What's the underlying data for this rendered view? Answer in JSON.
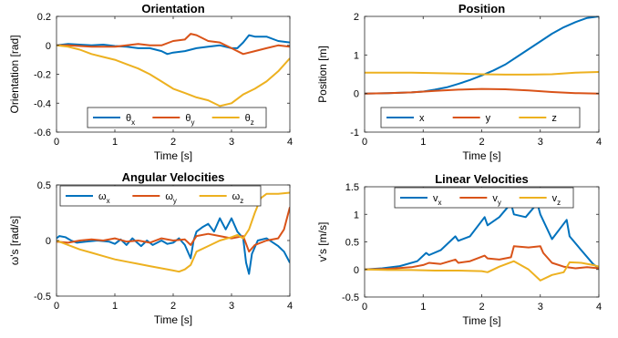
{
  "chart_data": [
    {
      "type": "line",
      "title": "Orientation",
      "xlabel": "Time [s]",
      "ylabel": "Orientation [rad]",
      "xlim": [
        0,
        4
      ],
      "ylim": [
        -0.6,
        0.2
      ],
      "xticks": [
        "0",
        "1",
        "2",
        "3",
        "4"
      ],
      "yticks": [
        "-0.6",
        "-0.4",
        "-0.2",
        "0",
        "0.2"
      ],
      "grid": false,
      "legend_position": "bottom-center",
      "legend_orientation": "horizontal",
      "series": [
        {
          "name": "θx",
          "name_base": "θ",
          "name_sub": "x",
          "color": "#0072BD",
          "x": [
            0,
            0.2,
            0.4,
            0.6,
            0.8,
            1.0,
            1.2,
            1.4,
            1.6,
            1.8,
            1.9,
            2.0,
            2.2,
            2.4,
            2.6,
            2.8,
            3.0,
            3.1,
            3.2,
            3.3,
            3.4,
            3.6,
            3.8,
            4.0
          ],
          "y": [
            0.0,
            0.01,
            0.005,
            0.0,
            0.005,
            -0.005,
            -0.01,
            -0.02,
            -0.02,
            -0.04,
            -0.06,
            -0.05,
            -0.04,
            -0.02,
            -0.01,
            0.0,
            -0.02,
            -0.02,
            0.02,
            0.07,
            0.06,
            0.06,
            0.03,
            0.02
          ]
        },
        {
          "name": "θy",
          "name_base": "θ",
          "name_sub": "y",
          "color": "#D95319",
          "x": [
            0,
            0.2,
            0.4,
            0.6,
            0.8,
            1.0,
            1.2,
            1.4,
            1.6,
            1.8,
            2.0,
            2.2,
            2.3,
            2.4,
            2.6,
            2.8,
            3.0,
            3.2,
            3.4,
            3.6,
            3.8,
            4.0
          ],
          "y": [
            0.0,
            0.0,
            -0.005,
            -0.01,
            -0.01,
            -0.01,
            0.0,
            0.01,
            0.0,
            0.0,
            0.03,
            0.04,
            0.08,
            0.07,
            0.03,
            0.02,
            -0.02,
            -0.06,
            -0.04,
            -0.02,
            0.0,
            -0.01
          ]
        },
        {
          "name": "θz",
          "name_base": "θ",
          "name_sub": "z",
          "color": "#EDB120",
          "x": [
            0,
            0.2,
            0.4,
            0.6,
            0.8,
            1.0,
            1.2,
            1.4,
            1.6,
            1.8,
            2.0,
            2.2,
            2.4,
            2.6,
            2.8,
            3.0,
            3.2,
            3.4,
            3.6,
            3.8,
            4.0
          ],
          "y": [
            0.0,
            -0.01,
            -0.03,
            -0.06,
            -0.08,
            -0.1,
            -0.13,
            -0.16,
            -0.2,
            -0.25,
            -0.3,
            -0.33,
            -0.36,
            -0.38,
            -0.42,
            -0.4,
            -0.34,
            -0.3,
            -0.25,
            -0.18,
            -0.09
          ]
        }
      ]
    },
    {
      "type": "line",
      "title": "Position",
      "xlabel": "Time [s]",
      "ylabel": "Position [m]",
      "xlim": [
        0,
        4
      ],
      "ylim": [
        -1,
        2
      ],
      "xticks": [
        "0",
        "1",
        "2",
        "3",
        "4"
      ],
      "yticks": [
        "-1",
        "0",
        "1",
        "2"
      ],
      "grid": false,
      "legend_position": "bottom-center",
      "legend_orientation": "horizontal",
      "series": [
        {
          "name": "x",
          "name_base": "x",
          "name_sub": "",
          "color": "#0072BD",
          "x": [
            0,
            0.4,
            0.8,
            1.0,
            1.2,
            1.4,
            1.6,
            1.8,
            2.0,
            2.2,
            2.4,
            2.6,
            2.8,
            3.0,
            3.2,
            3.4,
            3.6,
            3.8,
            4.0
          ],
          "y": [
            0.0,
            0.01,
            0.03,
            0.05,
            0.1,
            0.16,
            0.25,
            0.35,
            0.47,
            0.6,
            0.75,
            0.95,
            1.15,
            1.35,
            1.55,
            1.72,
            1.85,
            1.96,
            2.0
          ]
        },
        {
          "name": "y",
          "name_base": "y",
          "name_sub": "",
          "color": "#D95319",
          "x": [
            0,
            0.4,
            0.8,
            1.2,
            1.6,
            2.0,
            2.4,
            2.8,
            3.2,
            3.6,
            4.0
          ],
          "y": [
            0.0,
            0.01,
            0.03,
            0.07,
            0.1,
            0.12,
            0.11,
            0.08,
            0.04,
            0.01,
            0.0
          ]
        },
        {
          "name": "z",
          "name_base": "z",
          "name_sub": "",
          "color": "#EDB120",
          "x": [
            0,
            0.4,
            0.8,
            1.2,
            1.6,
            2.0,
            2.4,
            2.8,
            3.2,
            3.6,
            4.0
          ],
          "y": [
            0.54,
            0.54,
            0.54,
            0.53,
            0.52,
            0.5,
            0.49,
            0.49,
            0.5,
            0.54,
            0.56
          ]
        }
      ]
    },
    {
      "type": "line",
      "title": "Angular Velocities",
      "xlabel": "Time [s]",
      "ylabel": "ω's [rad/s]",
      "xlim": [
        0,
        4
      ],
      "ylim": [
        -0.5,
        0.5
      ],
      "xticks": [
        "0",
        "1",
        "2",
        "3",
        "4"
      ],
      "yticks": [
        "-0.5",
        "0",
        "0.5"
      ],
      "grid": false,
      "legend_position": "top-center",
      "legend_orientation": "horizontal",
      "series": [
        {
          "name": "ωx",
          "name_base": "ω",
          "name_sub": "x",
          "color": "#0072BD",
          "x": [
            0,
            0.05,
            0.15,
            0.25,
            0.35,
            0.5,
            0.7,
            0.9,
            1.0,
            1.1,
            1.2,
            1.3,
            1.45,
            1.55,
            1.65,
            1.8,
            1.9,
            2.0,
            2.1,
            2.2,
            2.3,
            2.35,
            2.4,
            2.5,
            2.6,
            2.7,
            2.8,
            2.9,
            3.0,
            3.1,
            3.2,
            3.25,
            3.3,
            3.35,
            3.45,
            3.6,
            3.8,
            3.9,
            4.0
          ],
          "y": [
            0.02,
            0.04,
            0.03,
            0.0,
            -0.02,
            -0.01,
            0.0,
            -0.01,
            -0.03,
            0.01,
            -0.04,
            0.02,
            -0.05,
            0.0,
            -0.04,
            0.0,
            -0.03,
            -0.02,
            0.02,
            -0.04,
            -0.16,
            0.0,
            0.08,
            0.12,
            0.15,
            0.08,
            0.2,
            0.1,
            0.2,
            0.08,
            0.02,
            -0.2,
            -0.3,
            -0.12,
            0.0,
            0.02,
            -0.05,
            -0.1,
            -0.2
          ]
        },
        {
          "name": "ωy",
          "name_base": "ω",
          "name_sub": "y",
          "color": "#D95319",
          "x": [
            0,
            0.2,
            0.4,
            0.6,
            0.8,
            1.0,
            1.2,
            1.4,
            1.6,
            1.8,
            2.0,
            2.2,
            2.3,
            2.4,
            2.6,
            2.8,
            3.0,
            3.2,
            3.3,
            3.4,
            3.6,
            3.8,
            3.9,
            4.0
          ],
          "y": [
            -0.01,
            -0.02,
            0.0,
            0.01,
            0.0,
            0.02,
            -0.01,
            0.0,
            -0.02,
            0.02,
            0.0,
            0.01,
            -0.04,
            0.04,
            0.06,
            0.04,
            0.02,
            0.04,
            -0.1,
            -0.04,
            0.0,
            0.02,
            0.1,
            0.3
          ]
        },
        {
          "name": "ωz",
          "name_base": "ω",
          "name_sub": "z",
          "color": "#EDB120",
          "x": [
            0,
            0.2,
            0.4,
            0.6,
            0.8,
            1.0,
            1.2,
            1.4,
            1.6,
            1.8,
            2.0,
            2.1,
            2.2,
            2.3,
            2.4,
            2.6,
            2.8,
            3.0,
            3.1,
            3.2,
            3.3,
            3.4,
            3.5,
            3.6,
            3.8,
            4.0
          ],
          "y": [
            0.0,
            -0.04,
            -0.08,
            -0.11,
            -0.14,
            -0.17,
            -0.19,
            -0.21,
            -0.23,
            -0.25,
            -0.27,
            -0.28,
            -0.26,
            -0.22,
            -0.1,
            -0.05,
            0.0,
            0.03,
            0.05,
            0.02,
            0.1,
            0.25,
            0.38,
            0.42,
            0.42,
            0.43
          ]
        }
      ]
    },
    {
      "type": "line",
      "title": "Linear Velocities",
      "xlabel": "Time [s]",
      "ylabel": "v's [m/s]",
      "xlim": [
        0,
        4
      ],
      "ylim": [
        -0.5,
        1.5
      ],
      "xticks": [
        "0",
        "1",
        "2",
        "3",
        "4"
      ],
      "yticks": [
        "-0.5",
        "0",
        "0.5",
        "1",
        "1.5"
      ],
      "grid": false,
      "legend_position": "top-center",
      "legend_orientation": "horizontal",
      "series": [
        {
          "name": "vx",
          "name_base": "v",
          "name_sub": "x",
          "color": "#0072BD",
          "x": [
            0,
            0.3,
            0.6,
            0.9,
            1.05,
            1.1,
            1.3,
            1.55,
            1.6,
            1.8,
            2.05,
            2.1,
            2.3,
            2.5,
            2.55,
            2.75,
            2.95,
            3.0,
            3.2,
            3.45,
            3.5,
            3.7,
            3.9,
            4.0
          ],
          "y": [
            0.0,
            0.02,
            0.06,
            0.15,
            0.3,
            0.26,
            0.35,
            0.6,
            0.52,
            0.6,
            0.95,
            0.8,
            0.95,
            1.2,
            1.0,
            0.95,
            1.2,
            1.0,
            0.55,
            0.9,
            0.6,
            0.35,
            0.1,
            0.02
          ]
        },
        {
          "name": "vy",
          "name_base": "v",
          "name_sub": "y",
          "color": "#D95319",
          "x": [
            0,
            0.4,
            0.8,
            1.0,
            1.1,
            1.3,
            1.55,
            1.6,
            1.8,
            2.05,
            2.1,
            2.3,
            2.5,
            2.55,
            2.8,
            3.0,
            3.05,
            3.2,
            3.4,
            3.6,
            3.8,
            4.0
          ],
          "y": [
            0.0,
            0.01,
            0.04,
            0.08,
            0.12,
            0.1,
            0.18,
            0.12,
            0.15,
            0.25,
            0.2,
            0.18,
            0.22,
            0.42,
            0.4,
            0.42,
            0.3,
            0.12,
            0.05,
            0.02,
            0.04,
            0.02
          ]
        },
        {
          "name": "vz",
          "name_base": "v",
          "name_sub": "z",
          "color": "#EDB120",
          "x": [
            0,
            0.4,
            0.8,
            1.2,
            1.6,
            2.0,
            2.1,
            2.3,
            2.55,
            2.8,
            3.0,
            3.2,
            3.4,
            3.5,
            3.7,
            3.9,
            4.0
          ],
          "y": [
            0.0,
            -0.01,
            -0.01,
            -0.02,
            -0.02,
            -0.03,
            -0.05,
            0.05,
            0.15,
            0.0,
            -0.2,
            -0.1,
            -0.05,
            0.13,
            0.12,
            0.08,
            0.05
          ]
        }
      ]
    }
  ]
}
